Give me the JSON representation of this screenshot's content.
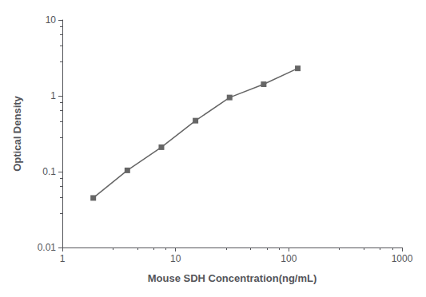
{
  "chart_data": {
    "type": "line",
    "x": [
      1.875,
      3.75,
      7.5,
      15,
      30,
      60,
      120
    ],
    "values": [
      0.045,
      0.104,
      0.21,
      0.47,
      0.95,
      1.42,
      2.3
    ],
    "xlabel": "Mouse SDH Concentration(ng/mL)",
    "ylabel": "Optical Density",
    "xlim": [
      1,
      1000
    ],
    "ylim": [
      0.01,
      10
    ],
    "xticks": [
      1,
      10,
      100,
      1000
    ],
    "yticks": [
      0.01,
      0.1,
      1,
      10
    ],
    "log": true,
    "color": "#666666",
    "marker": "square",
    "grid": false
  }
}
